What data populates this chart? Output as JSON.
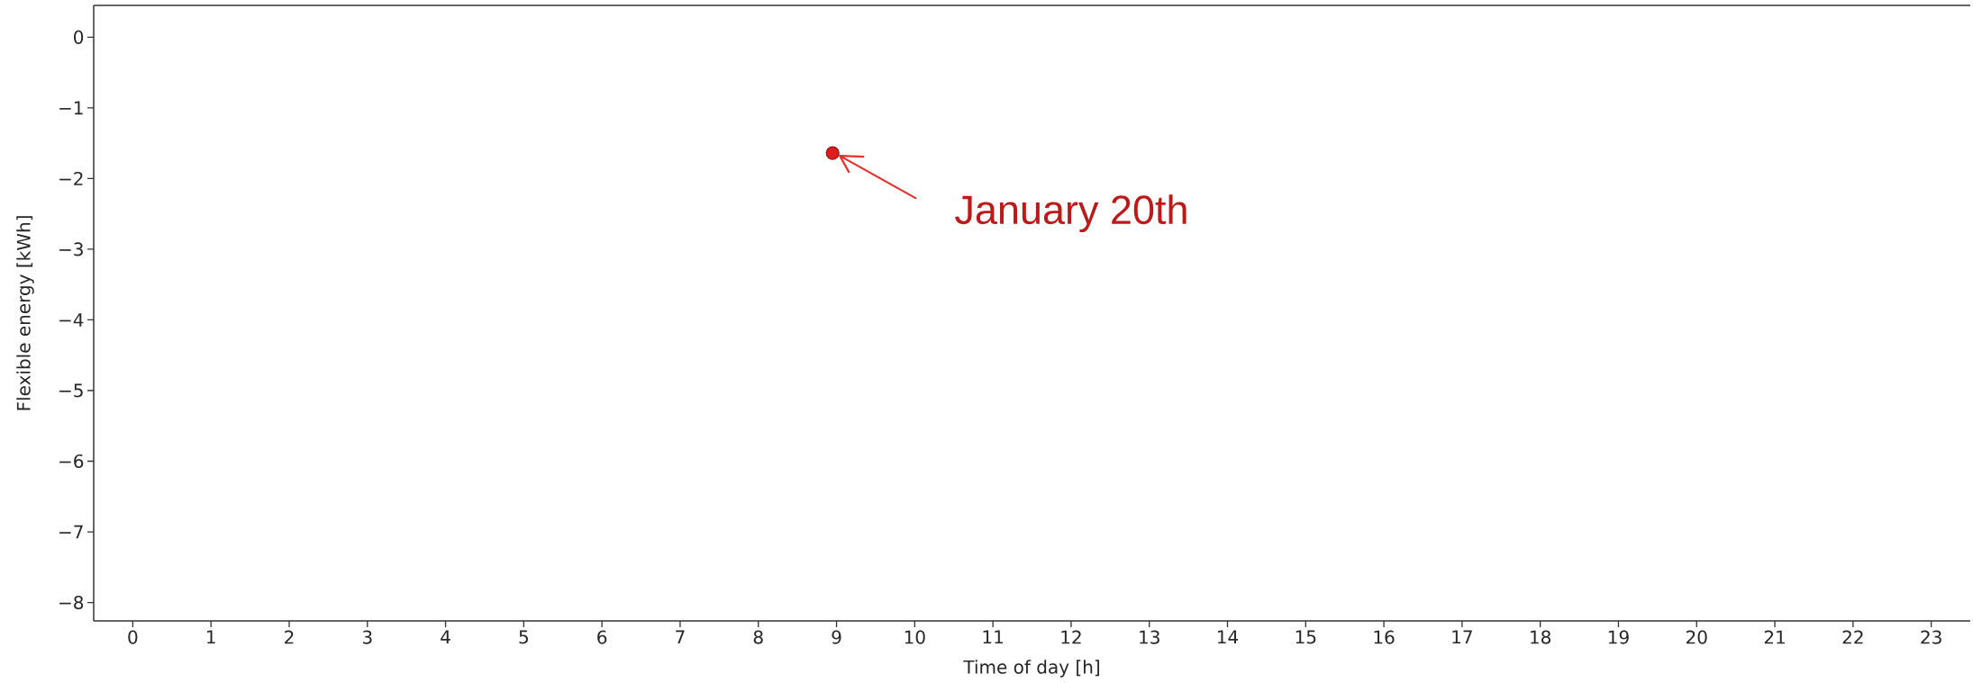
{
  "chart_data": {
    "type": "scatter",
    "xlabel": "Time of day [h]",
    "ylabel": "Flexible energy [kWh]",
    "x": [
      8.95
    ],
    "values": [
      -1.64
    ],
    "color": "#dd1e1e",
    "marker": "circle",
    "xlim": [
      -0.5,
      23.5
    ],
    "ylim": [
      -8.26,
      0.45
    ],
    "xticks": [
      0,
      1,
      2,
      3,
      4,
      5,
      6,
      7,
      8,
      9,
      10,
      11,
      12,
      13,
      14,
      15,
      16,
      17,
      18,
      19,
      20,
      21,
      22,
      23
    ],
    "yticks": [
      {
        "value": -8,
        "label": "−8"
      },
      {
        "value": -7,
        "label": "−7"
      },
      {
        "value": -6,
        "label": "−6"
      },
      {
        "value": -5,
        "label": "−5"
      },
      {
        "value": -4,
        "label": "−4"
      },
      {
        "value": -3,
        "label": "−3"
      },
      {
        "value": -2,
        "label": "−2"
      },
      {
        "value": -1,
        "label": "−1"
      },
      0
    ],
    "annotations": [
      {
        "text": "January 20th",
        "x": 8.95,
        "y": -1.64
      }
    ]
  }
}
